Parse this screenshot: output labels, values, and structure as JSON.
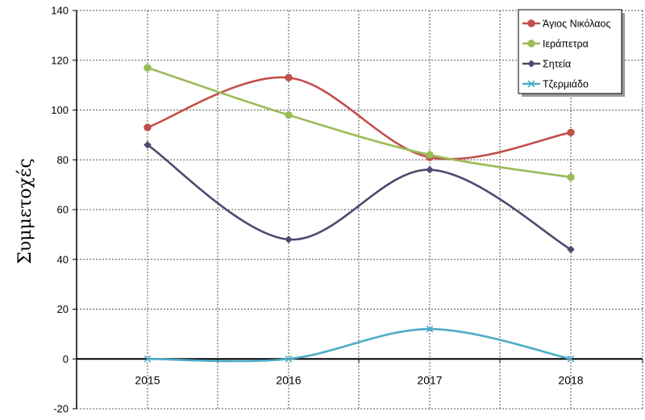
{
  "chart_data": {
    "type": "line",
    "title": "",
    "xlabel": "",
    "ylabel": "Συμμετοχές",
    "categories": [
      "2015",
      "2016",
      "2017",
      "2018"
    ],
    "ylim": [
      -20,
      140
    ],
    "yticks": [
      140,
      120,
      100,
      80,
      60,
      40,
      20,
      0,
      -20
    ],
    "grid": true,
    "smooth": true,
    "legend_position": "top-right",
    "series": [
      {
        "name": "Άγιος Νικόλαος",
        "values": [
          93,
          113,
          81,
          91
        ],
        "color": "#c0504d",
        "marker": "circle"
      },
      {
        "name": "Ιεράπετρα",
        "values": [
          117,
          98,
          82,
          73
        ],
        "color": "#9bbb59",
        "marker": "circle"
      },
      {
        "name": "Σητεία",
        "values": [
          86,
          48,
          76,
          44
        ],
        "color": "#4f4a6e",
        "marker": "diamond"
      },
      {
        "name": "Τζερμιάδο",
        "values": [
          0,
          0,
          12,
          0
        ],
        "color": "#4bacc6",
        "marker": "x"
      }
    ]
  }
}
